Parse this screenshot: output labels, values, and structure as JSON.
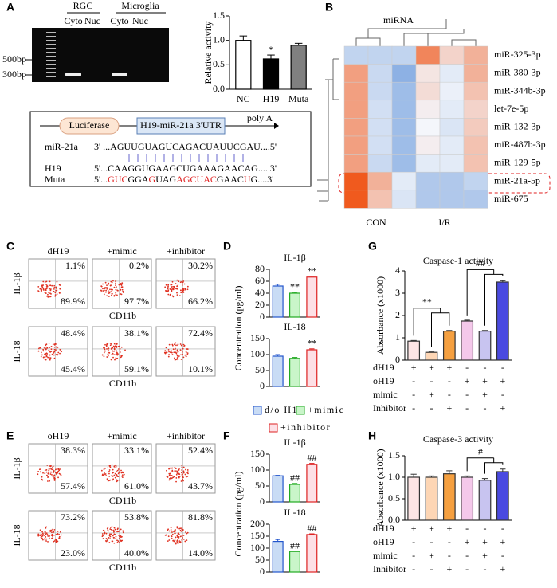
{
  "panels": {
    "A": {
      "label": "A",
      "gel": {
        "groups": [
          "RGC",
          "Microglia"
        ],
        "lanes": [
          "Cyto",
          "Nuc",
          "Cyto",
          "Nuc"
        ],
        "markers": [
          "500bp",
          "300bp"
        ]
      },
      "chart": {
        "type": "bar",
        "ylabel": "Relative activity",
        "categories": [
          "NC",
          "H19",
          "Muta"
        ],
        "values": [
          1.0,
          0.62,
          0.9
        ],
        "errors": [
          0.09,
          0.08,
          0.04
        ],
        "marks": [
          null,
          "*",
          null
        ],
        "colors": [
          "#ffffff",
          "#000000",
          "#808080"
        ],
        "edge_colors": [
          "#000000",
          "#000000",
          "#000000"
        ],
        "ylim": [
          0,
          1.5
        ],
        "yticks": [
          {
            "value": 0,
            "label": "0.0"
          },
          {
            "value": 0.5,
            "label": "0.5"
          },
          {
            "value": 1,
            "label": "1.0"
          },
          {
            "value": 1.5,
            "label": "1.5"
          }
        ]
      },
      "construct": {
        "luciferase": "Luciferase",
        "utr": "H19-miR-21a 3'UTR",
        "polya": "poly A",
        "rows": [
          {
            "name": "miR-21a",
            "seq": "3' ...AGUUGUAGUCAGACUAUUCGAU....5'"
          },
          {
            "name": "H19",
            "seq": "5'...CAAGGUGAAGCUGAAAGAACAG.... 3'"
          }
        ],
        "muta": {
          "name": "Muta",
          "segments": [
            {
              "text": "5'...",
              "color": "#000000"
            },
            {
              "text": "GUC",
              "color": "#e02020"
            },
            {
              "text": "GGA",
              "color": "#000000"
            },
            {
              "text": "G",
              "color": "#e02020"
            },
            {
              "text": "UAG",
              "color": "#000000"
            },
            {
              "text": "AGCU",
              "color": "#e02020"
            },
            {
              "text": "AC",
              "color": "#e02020"
            },
            {
              "text": "GAAC",
              "color": "#000000"
            },
            {
              "text": "U",
              "color": "#e02020"
            },
            {
              "text": "G....3'",
              "color": "#000000"
            }
          ]
        }
      }
    },
    "B": {
      "label": "B",
      "type": "heatmap",
      "title": "miRNA",
      "groups": [
        "CON",
        "I/R"
      ],
      "highlight": "miR-21a-5p",
      "rows": [
        "miR-325-3p",
        "miR-380-3p",
        "miR-344b-3p",
        "let-7e-5p",
        "miR-132-3p",
        "miR-487b-3p",
        "miR-129-5p",
        "miR-21a-5p",
        "miR-675"
      ],
      "values": [
        [
          -0.6,
          -0.6,
          -0.6,
          1.3,
          0.4,
          0.8
        ],
        [
          1.0,
          -0.5,
          -1.2,
          0.2,
          -0.2,
          0.8
        ],
        [
          1.0,
          -0.5,
          -1.0,
          0.3,
          -0.1,
          0.6
        ],
        [
          1.0,
          -0.4,
          -1.0,
          0.1,
          -0.2,
          0.4
        ],
        [
          1.0,
          -0.4,
          -1.0,
          0.0,
          -0.3,
          0.5
        ],
        [
          1.0,
          -0.4,
          -1.0,
          0.1,
          -0.2,
          0.6
        ],
        [
          1.0,
          -0.5,
          -1.0,
          -0.2,
          -0.2,
          0.6
        ],
        [
          1.8,
          0.8,
          -0.2,
          -0.8,
          -0.8,
          -0.6
        ],
        [
          1.8,
          0.6,
          -0.3,
          -0.8,
          -0.8,
          -0.8
        ]
      ],
      "color_low": "#5a8fd8",
      "color_mid": "#f4f6fb",
      "color_high": "#f05a1e"
    },
    "C": {
      "label": "C",
      "columns": [
        "dH19",
        "+mimic",
        "+inhibitor"
      ],
      "xlabel": "CD11b",
      "rows": [
        {
          "name": "IL-1β",
          "pcts": [
            [
              "1.1%",
              "89.9%"
            ],
            [
              "0.2%",
              "97.7%"
            ],
            [
              "30.2%",
              "66.2%"
            ]
          ]
        },
        {
          "name": "IL-18",
          "pcts": [
            [
              "48.4%",
              "45.4%"
            ],
            [
              "38.1%",
              "59.1%"
            ],
            [
              "72.4%",
              "10.1%"
            ]
          ]
        }
      ]
    },
    "E": {
      "label": "E",
      "columns": [
        "oH19",
        "+mimic",
        "+inhibitor"
      ],
      "xlabel": "CD11b",
      "rows": [
        {
          "name": "IL-1β",
          "pcts": [
            [
              "38.3%",
              "57.4%"
            ],
            [
              "33.1%",
              "61.0%"
            ],
            [
              "52.4%",
              "43.7%"
            ]
          ]
        },
        {
          "name": "IL-18",
          "pcts": [
            [
              "73.2%",
              "23.0%"
            ],
            [
              "53.8%",
              "40.0%"
            ],
            [
              "81.8%",
              "14.0%"
            ]
          ]
        }
      ]
    },
    "D": {
      "label": "D",
      "ylabel": "Concentration (pg/ml)",
      "legend": [
        "d/o H19",
        "+mimic",
        "+inhibitor"
      ],
      "charts": [
        {
          "type": "bar",
          "title": "IL-1β",
          "values": [
            52,
            40,
            67
          ],
          "errors": [
            3,
            1.5,
            1.5
          ],
          "marks": [
            null,
            "**",
            "**"
          ],
          "colors": [
            "#c9dcf5",
            "#c9f5c9",
            "#fde0e6"
          ],
          "edge_colors": [
            "#2255cc",
            "#22aa22",
            "#dd2222"
          ],
          "ylim": [
            0,
            80
          ],
          "yticks": [
            0,
            20,
            40,
            60,
            80
          ]
        },
        {
          "type": "bar",
          "title": "IL-18",
          "values": [
            95,
            88,
            115
          ],
          "errors": [
            5,
            3,
            3
          ],
          "marks": [
            null,
            null,
            "**"
          ],
          "colors": [
            "#c9dcf5",
            "#c9f5c9",
            "#fde0e6"
          ],
          "edge_colors": [
            "#2255cc",
            "#22aa22",
            "#dd2222"
          ],
          "ylim": [
            0,
            150
          ],
          "yticks": [
            0,
            50,
            100,
            150
          ]
        }
      ]
    },
    "F": {
      "label": "F",
      "ylabel": "Concentration (pg/ml)",
      "charts": [
        {
          "type": "bar",
          "title": "IL-1β",
          "values": [
            82,
            55,
            118
          ],
          "errors": [
            1.5,
            3,
            3
          ],
          "marks": [
            null,
            "##",
            "##"
          ],
          "colors": [
            "#c9dcf5",
            "#c9f5c9",
            "#fde0e6"
          ],
          "edge_colors": [
            "#2255cc",
            "#22aa22",
            "#dd2222"
          ],
          "ylim": [
            0,
            150
          ],
          "yticks": [
            0,
            50,
            100,
            150
          ]
        },
        {
          "type": "bar",
          "title": "IL-18",
          "values": [
            128,
            86,
            157
          ],
          "errors": [
            8,
            2,
            3
          ],
          "marks": [
            null,
            "##",
            "##"
          ],
          "colors": [
            "#c9dcf5",
            "#c9f5c9",
            "#fde0e6"
          ],
          "edge_colors": [
            "#2255cc",
            "#22aa22",
            "#dd2222"
          ],
          "ylim": [
            0,
            200
          ],
          "yticks": [
            0,
            50,
            100,
            150,
            200
          ]
        }
      ]
    },
    "G": {
      "label": "G",
      "chart": {
        "type": "bar",
        "title": "Caspase-1 activity",
        "ylabel": "Absorbance (x1000)",
        "values": [
          0.85,
          0.35,
          1.3,
          1.75,
          1.3,
          3.5
        ],
        "errors": [
          0.03,
          0.02,
          0.03,
          0.04,
          0.03,
          0.06
        ],
        "colors": [
          "#fde4e4",
          "#fdd6b5",
          "#f5a040",
          "#f4c8ea",
          "#c8c4f0",
          "#4a4ae0"
        ],
        "edge_colors": [
          "#333333",
          "#333333",
          "#333333",
          "#333333",
          "#333333",
          "#333333"
        ],
        "ylim": [
          0,
          4
        ],
        "yticks": [
          0,
          1,
          2,
          3,
          4
        ],
        "brackets": [
          "**",
          "##"
        ]
      },
      "table": [
        {
          "label": "dH19",
          "signs": [
            "+",
            "+",
            "+",
            "-",
            "-",
            "-"
          ]
        },
        {
          "label": "oH19",
          "signs": [
            "-",
            "-",
            "-",
            "+",
            "+",
            "+"
          ]
        },
        {
          "label": "mimic",
          "signs": [
            "-",
            "+",
            "-",
            "-",
            "+",
            "-"
          ]
        },
        {
          "label": "Inhibitor",
          "signs": [
            "-",
            "-",
            "+",
            "-",
            "-",
            "+"
          ]
        }
      ]
    },
    "H": {
      "label": "H",
      "chart": {
        "type": "bar",
        "title": "Caspase-3 activity",
        "ylabel": "Absorbance (x1000)",
        "values": [
          1.0,
          1.0,
          1.08,
          1.0,
          0.93,
          1.13
        ],
        "errors": [
          0.07,
          0.03,
          0.07,
          0.03,
          0.04,
          0.06
        ],
        "colors": [
          "#fde4e4",
          "#fdd6b5",
          "#f5a040",
          "#f4c8ea",
          "#c8c4f0",
          "#4a4ae0"
        ],
        "edge_colors": [
          "#333333",
          "#333333",
          "#333333",
          "#333333",
          "#333333",
          "#333333"
        ],
        "ylim": [
          0,
          1.5
        ],
        "yticks": [
          {
            "value": 0,
            "label": "0.0"
          },
          {
            "value": 0.5,
            "label": "0.5"
          },
          {
            "value": 1,
            "label": "1.0"
          },
          {
            "value": 1.5,
            "label": "1.5"
          }
        ],
        "brackets": [
          "#"
        ]
      },
      "table": [
        {
          "label": "dH19",
          "signs": [
            "+",
            "+",
            "+",
            "-",
            "-",
            "-"
          ]
        },
        {
          "label": "oH19",
          "signs": [
            "-",
            "-",
            "-",
            "+",
            "+",
            "+"
          ]
        },
        {
          "label": "mimic",
          "signs": [
            "-",
            "+",
            "-",
            "-",
            "+",
            "-"
          ]
        },
        {
          "label": "Inhibitor",
          "signs": [
            "-",
            "-",
            "+",
            "-",
            "-",
            "+"
          ]
        }
      ]
    }
  }
}
